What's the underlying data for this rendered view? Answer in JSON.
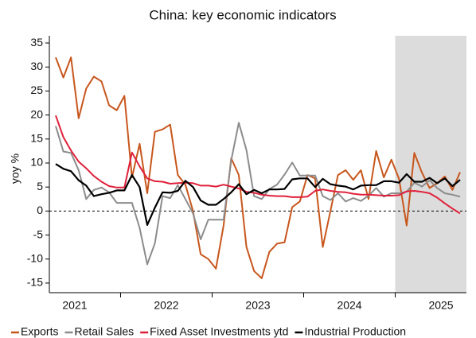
{
  "chart_data": {
    "type": "line",
    "title": "China: key economic indicators",
    "y_label": "yoy %",
    "categories": [
      null,
      null,
      "2021",
      null,
      null,
      null,
      null,
      null,
      null,
      null,
      null,
      null,
      null,
      null,
      "2022",
      null,
      null,
      null,
      null,
      null,
      null,
      null,
      null,
      null,
      null,
      null,
      "2023",
      null,
      null,
      null,
      null,
      null,
      null,
      null,
      null,
      null,
      null,
      null,
      "2024",
      null,
      null,
      null,
      null,
      null,
      null,
      null,
      null,
      null,
      null,
      null,
      "2025",
      null,
      null,
      null
    ],
    "series": [
      {
        "name": "Exports",
        "color": "#c8561c",
        "values": [
          32,
          27.8,
          32,
          19.3,
          25.5,
          28,
          27,
          22,
          21,
          24,
          7,
          14,
          3.7,
          16.5,
          17,
          18,
          7.5,
          5.5,
          0,
          -9,
          -10,
          -12,
          -3,
          11,
          7.5,
          -7.5,
          -12.5,
          -14,
          -8.5,
          -6.8,
          -6.5,
          0.8,
          2,
          7.5,
          6.8,
          -7.5,
          0,
          7.5,
          8.5,
          6.5,
          8.5,
          2.5,
          12.5,
          7,
          10.7,
          6.7,
          -3,
          12.1,
          8,
          4.8,
          5.8,
          7.2,
          4.4,
          8.1
        ]
      },
      {
        "name": "Retail Sales",
        "color": "#8c8c8c",
        "values": [
          17.7,
          12.4,
          12.1,
          8.5,
          2.5,
          4.4,
          4.9,
          3.9,
          1.7,
          1.7,
          1.7,
          -3.5,
          -11.1,
          -6.7,
          3.1,
          2.7,
          5.4,
          2.5,
          -0.5,
          -5.9,
          -1.8,
          -1.8,
          -1.8,
          10.6,
          18.4,
          12.7,
          3.1,
          2.5,
          4.6,
          5.5,
          7.6,
          10.1,
          7.4,
          7.4,
          7.4,
          3.1,
          2.3,
          3.7,
          2,
          2.7,
          2.1,
          3.2,
          4.8,
          3,
          3.7,
          3.7,
          4,
          5.9,
          5.1,
          6.4,
          4.8,
          3.7,
          3.4,
          3
        ]
      },
      {
        "name": "Fixed Asset Investments ytd",
        "color": "#e0203a",
        "values": [
          19.9,
          15.4,
          12.6,
          10.3,
          8.9,
          7.3,
          6.1,
          5.2,
          4.9,
          4.9,
          12.2,
          9.3,
          6.8,
          6.2,
          6.1,
          5.7,
          5.8,
          5.9,
          5.8,
          5.3,
          5.3,
          5.1,
          5.5,
          5.1,
          4.7,
          4,
          3.8,
          3.4,
          3.2,
          3.1,
          3.1,
          2.9,
          2.9,
          3,
          4.2,
          4.5,
          4.2,
          4,
          3.9,
          3.6,
          3.4,
          3.4,
          3.3,
          3.2,
          3.2,
          3.3,
          4.1,
          4.2,
          4,
          3.7,
          2.8,
          1.6,
          0.5,
          -0.5
        ]
      },
      {
        "name": "Industrial Production",
        "color": "#000000",
        "values": [
          9.8,
          8.8,
          8.3,
          6.4,
          5.3,
          3.1,
          3.5,
          3.8,
          4.3,
          4.3,
          7.5,
          5,
          -2.9,
          0.7,
          3.9,
          3.8,
          4.2,
          6.3,
          5,
          2.2,
          1.3,
          1.3,
          2.5,
          3.9,
          5.6,
          3.5,
          4.4,
          3.7,
          4.5,
          4.5,
          4.6,
          6.6,
          6.8,
          6.8,
          5,
          6.7,
          5.6,
          5.3,
          5.1,
          4.5,
          5.3,
          5.4,
          5.4,
          6.2,
          6.2,
          5.9,
          7.7,
          6.1,
          6.1,
          6.9,
          5.8,
          6.8,
          5.2,
          6.5
        ]
      }
    ],
    "ylim": [
      -17,
      36.5
    ],
    "yticks": [
      -15,
      -10,
      -5,
      0,
      5,
      10,
      15,
      20,
      25,
      30,
      35
    ]
  }
}
